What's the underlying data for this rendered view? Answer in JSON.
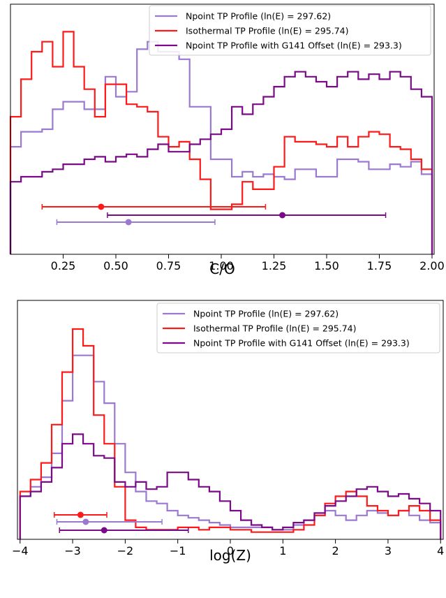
{
  "chart_data": [
    {
      "type": "line",
      "subtype": "step-histogram",
      "title": "",
      "xlabel": "C/O",
      "ylabel": "",
      "xlim": [
        0.0,
        2.01
      ],
      "ylim": [
        0,
        1.0
      ],
      "yticks_shown": false,
      "xticks": [
        "0.25",
        "0.50",
        "0.75",
        "1.00",
        "1.25",
        "1.50",
        "1.75",
        "2.00"
      ],
      "legend": {
        "position": "top-right"
      },
      "bin_edges": [
        0.0,
        0.05,
        0.1,
        0.15,
        0.2,
        0.25,
        0.3,
        0.35,
        0.4,
        0.45,
        0.5,
        0.55,
        0.6,
        0.65,
        0.7,
        0.75,
        0.8,
        0.85,
        0.9,
        0.95,
        1.0,
        1.05,
        1.1,
        1.15,
        1.2,
        1.25,
        1.3,
        1.35,
        1.4,
        1.45,
        1.5,
        1.55,
        1.6,
        1.65,
        1.7,
        1.75,
        1.8,
        1.85,
        1.9,
        1.95,
        2.0
      ],
      "series": [
        {
          "name": "Npoint TP Profile (ln(E) = 297.62)",
          "color": "#9b79d1",
          "values": [
            0.43,
            0.49,
            0.49,
            0.5,
            0.58,
            0.61,
            0.61,
            0.58,
            0.58,
            0.71,
            0.63,
            0.65,
            0.82,
            0.85,
            0.81,
            0.81,
            0.78,
            0.59,
            0.59,
            0.38,
            0.38,
            0.31,
            0.33,
            0.31,
            0.32,
            0.31,
            0.3,
            0.34,
            0.34,
            0.31,
            0.31,
            0.38,
            0.38,
            0.37,
            0.34,
            0.34,
            0.36,
            0.35,
            0.37,
            0.32
          ],
          "errorbar": {
            "center": 0.56,
            "low": 0.22,
            "high": 0.97
          }
        },
        {
          "name": "Isothermal TP Profile (ln(E) = 295.74)",
          "color": "#ff1a1a",
          "values": [
            0.55,
            0.7,
            0.81,
            0.85,
            0.75,
            0.89,
            0.75,
            0.66,
            0.55,
            0.68,
            0.68,
            0.6,
            0.59,
            0.57,
            0.47,
            0.43,
            0.45,
            0.38,
            0.3,
            0.18,
            0.18,
            0.2,
            0.29,
            0.26,
            0.26,
            0.35,
            0.47,
            0.45,
            0.45,
            0.44,
            0.43,
            0.47,
            0.43,
            0.47,
            0.49,
            0.48,
            0.43,
            0.42,
            0.38,
            0.34
          ],
          "errorbar": {
            "center": 0.43,
            "low": 0.15,
            "high": 1.21
          }
        },
        {
          "name": "Npoint TP Profile with G141 Offset (ln(E) = 293.3)",
          "color": "#7a0a87",
          "values": [
            0.29,
            0.31,
            0.31,
            0.33,
            0.34,
            0.36,
            0.36,
            0.38,
            0.39,
            0.37,
            0.39,
            0.4,
            0.39,
            0.42,
            0.44,
            0.41,
            0.41,
            0.44,
            0.46,
            0.48,
            0.5,
            0.59,
            0.56,
            0.6,
            0.63,
            0.67,
            0.71,
            0.73,
            0.71,
            0.69,
            0.67,
            0.71,
            0.73,
            0.7,
            0.72,
            0.7,
            0.73,
            0.71,
            0.66,
            0.63
          ],
          "errorbar": {
            "center": 1.29,
            "low": 0.46,
            "high": 1.78
          }
        }
      ]
    },
    {
      "type": "line",
      "subtype": "step-histogram",
      "title": "",
      "xlabel": "log(Z)",
      "ylabel": "",
      "xlim": [
        -4.05,
        4.05
      ],
      "ylim": [
        0,
        1.0
      ],
      "yticks_shown": false,
      "xticks": [
        "−4",
        "−3",
        "−2",
        "−1",
        "0",
        "1",
        "2",
        "3",
        "4"
      ],
      "legend": {
        "position": "top-right"
      },
      "bin_edges": [
        -4.0,
        -3.8,
        -3.6,
        -3.4,
        -3.2,
        -3.0,
        -2.8,
        -2.6,
        -2.4,
        -2.2,
        -2.0,
        -1.8,
        -1.6,
        -1.4,
        -1.2,
        -1.0,
        -0.8,
        -0.6,
        -0.4,
        -0.2,
        0.0,
        0.2,
        0.4,
        0.6,
        0.8,
        1.0,
        1.2,
        1.4,
        1.6,
        1.8,
        2.0,
        2.2,
        2.4,
        2.6,
        2.8,
        3.0,
        3.2,
        3.4,
        3.6,
        3.8,
        4.0
      ],
      "series": [
        {
          "name": "Npoint TP Profile (ln(E) = 297.62)",
          "color": "#9b79d1",
          "values": [
            0.18,
            0.22,
            0.26,
            0.36,
            0.58,
            0.77,
            0.77,
            0.66,
            0.57,
            0.4,
            0.28,
            0.2,
            0.16,
            0.15,
            0.12,
            0.1,
            0.09,
            0.08,
            0.07,
            0.06,
            0.05,
            0.05,
            0.05,
            0.05,
            0.04,
            0.04,
            0.06,
            0.08,
            0.1,
            0.12,
            0.1,
            0.08,
            0.1,
            0.12,
            0.11,
            0.1,
            0.12,
            0.1,
            0.08,
            0.07
          ],
          "errorbar": {
            "center": -2.75,
            "low": -3.3,
            "high": -1.3
          }
        },
        {
          "name": "Isothermal TP Profile (ln(E) = 295.74)",
          "color": "#ff1a1a",
          "values": [
            0.2,
            0.25,
            0.32,
            0.48,
            0.7,
            0.88,
            0.81,
            0.52,
            0.4,
            0.22,
            0.08,
            0.05,
            0.04,
            0.04,
            0.04,
            0.05,
            0.05,
            0.04,
            0.05,
            0.05,
            0.04,
            0.04,
            0.03,
            0.03,
            0.03,
            0.03,
            0.04,
            0.06,
            0.1,
            0.15,
            0.18,
            0.2,
            0.18,
            0.14,
            0.12,
            0.1,
            0.12,
            0.14,
            0.12,
            0.08
          ],
          "errorbar": {
            "center": -2.85,
            "low": -3.35,
            "high": -2.35
          }
        },
        {
          "name": "Npoint TP Profile with G141 Offset (ln(E) = 293.3)",
          "color": "#7a0a87",
          "values": [
            0.18,
            0.2,
            0.24,
            0.3,
            0.4,
            0.44,
            0.4,
            0.35,
            0.34,
            0.24,
            0.22,
            0.24,
            0.21,
            0.22,
            0.28,
            0.28,
            0.25,
            0.22,
            0.2,
            0.16,
            0.12,
            0.08,
            0.06,
            0.05,
            0.04,
            0.05,
            0.07,
            0.08,
            0.11,
            0.14,
            0.16,
            0.18,
            0.21,
            0.22,
            0.2,
            0.18,
            0.19,
            0.17,
            0.15,
            0.12
          ],
          "errorbar": {
            "center": -2.4,
            "low": -3.25,
            "high": -0.8
          }
        }
      ]
    }
  ]
}
